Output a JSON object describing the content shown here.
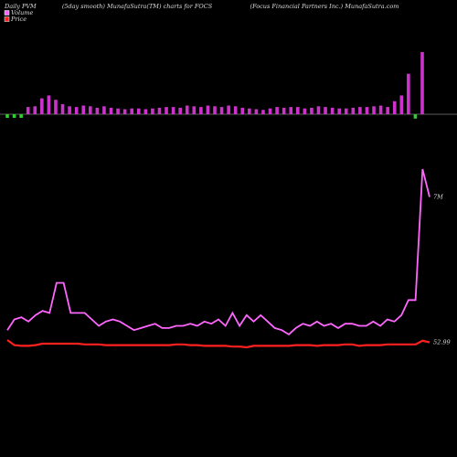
{
  "chart_data": {
    "type": "pvm",
    "title": "Daily PVM",
    "subtitle": "(5day smooth) MunafaSutra(TM) charts for FOCS",
    "source": "(Focus Financial Partners Inc.) MunafaSutra.com",
    "series": [
      {
        "name": "Volume",
        "color": "#ff66ff",
        "values": [
          0.8,
          1.3,
          1.4,
          1.2,
          1.5,
          1.7,
          1.6,
          3.0,
          3.0,
          1.6,
          1.6,
          1.6,
          1.3,
          1.0,
          1.2,
          1.3,
          1.2,
          1.0,
          0.8,
          0.9,
          1.0,
          1.1,
          0.9,
          0.9,
          1.0,
          1.0,
          1.1,
          1.0,
          1.2,
          1.1,
          1.3,
          1.0,
          1.6,
          1.0,
          1.5,
          1.2,
          1.5,
          1.2,
          0.9,
          0.8,
          0.6,
          0.9,
          1.1,
          1.0,
          1.2,
          1.0,
          1.1,
          0.9,
          1.1,
          1.1,
          1.0,
          1.0,
          1.2,
          1.0,
          1.3,
          1.2,
          1.5,
          2.2,
          2.2,
          8.3,
          7.0
        ],
        "value_labels": [
          null,
          null,
          null,
          null,
          null,
          null,
          null,
          null,
          null,
          null,
          null,
          null,
          null,
          null,
          null,
          null,
          null,
          null,
          null,
          null,
          null,
          null,
          null,
          null,
          null,
          null,
          null,
          null,
          null,
          null,
          null,
          null,
          null,
          null,
          null,
          null,
          null,
          null,
          null,
          null,
          null,
          null,
          null,
          null,
          null,
          null,
          null,
          null,
          null,
          null,
          null,
          null,
          null,
          null,
          null,
          null,
          null,
          null,
          null,
          null,
          "7M"
        ]
      },
      {
        "name": "Price",
        "color": "#ff2020",
        "values": [
          53.3,
          52.6,
          52.5,
          52.5,
          52.6,
          52.8,
          52.8,
          52.8,
          52.8,
          52.8,
          52.8,
          52.7,
          52.7,
          52.7,
          52.6,
          52.6,
          52.6,
          52.6,
          52.6,
          52.6,
          52.6,
          52.6,
          52.6,
          52.6,
          52.7,
          52.7,
          52.6,
          52.6,
          52.5,
          52.5,
          52.5,
          52.5,
          52.4,
          52.4,
          52.3,
          52.5,
          52.5,
          52.5,
          52.5,
          52.5,
          52.5,
          52.6,
          52.6,
          52.6,
          52.5,
          52.6,
          52.6,
          52.6,
          52.7,
          52.7,
          52.5,
          52.6,
          52.6,
          52.6,
          52.7,
          52.7,
          52.7,
          52.7,
          52.7,
          53.2,
          52.99
        ],
        "value_labels": [
          null,
          null,
          null,
          null,
          null,
          null,
          null,
          null,
          null,
          null,
          null,
          null,
          null,
          null,
          null,
          null,
          null,
          null,
          null,
          null,
          null,
          null,
          null,
          null,
          null,
          null,
          null,
          null,
          null,
          null,
          null,
          null,
          null,
          null,
          null,
          null,
          null,
          null,
          null,
          null,
          null,
          null,
          null,
          null,
          null,
          null,
          null,
          null,
          null,
          null,
          null,
          null,
          null,
          null,
          null,
          null,
          null,
          null,
          null,
          null,
          "52.99"
        ]
      }
    ],
    "bars": {
      "color": "#cc33cc",
      "down_color": "#33cc33",
      "values": [
        0.5,
        0.5,
        0.5,
        1.0,
        1.1,
        2.2,
        2.6,
        2.0,
        1.4,
        1.1,
        1.0,
        1.2,
        1.1,
        0.9,
        1.1,
        0.9,
        0.8,
        0.7,
        0.8,
        0.8,
        0.7,
        0.8,
        0.9,
        1.0,
        1.0,
        0.9,
        1.2,
        1.1,
        1.0,
        1.2,
        1.1,
        1.0,
        1.2,
        1.1,
        0.9,
        0.8,
        0.7,
        0.6,
        0.8,
        1.0,
        0.9,
        1.0,
        1.0,
        0.8,
        0.9,
        1.1,
        1.0,
        0.9,
        0.8,
        0.8,
        0.9,
        1.0,
        1.0,
        1.1,
        1.2,
        1.0,
        1.8,
        2.6,
        5.6,
        0.6,
        8.6
      ],
      "down": [
        true,
        true,
        true,
        false,
        false,
        false,
        false,
        false,
        false,
        false,
        false,
        false,
        false,
        false,
        false,
        false,
        false,
        false,
        false,
        false,
        false,
        false,
        false,
        false,
        false,
        false,
        false,
        false,
        false,
        false,
        false,
        false,
        false,
        false,
        false,
        false,
        false,
        false,
        false,
        false,
        false,
        false,
        false,
        false,
        false,
        false,
        false,
        false,
        false,
        false,
        false,
        false,
        false,
        false,
        false,
        false,
        false,
        false,
        false,
        true,
        false
      ]
    }
  }
}
